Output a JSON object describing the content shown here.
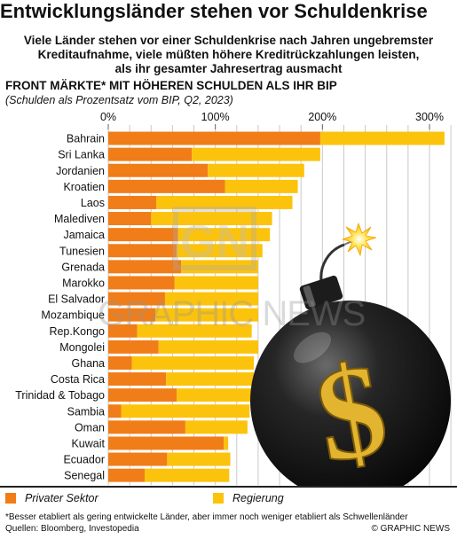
{
  "header": {
    "title": "Entwicklungsländer stehen vor Schuldenkrise",
    "subtitle_lines": [
      "Viele Länder stehen vor einer Schuldenkrise nach Jahren ungebremster",
      "Kreditaufnahme, viele müßten höhere Kreditrückzahlungen leisten,",
      "als ihr gesamter Jahresertrag ausmacht"
    ],
    "heading": "FRONT MÄRKTE* MIT HÖHEREN SCHULDEN ALS IHR BIP",
    "subheading": "(Schulden als Prozentsatz vom BIP, Q2, 2023)"
  },
  "colors": {
    "private": "#f07d18",
    "government": "#fcc30d",
    "grid": "#c9c9c9"
  },
  "chart_data": {
    "type": "bar",
    "orientation": "horizontal",
    "stacked": true,
    "xlim": [
      0,
      320
    ],
    "x_ticks": [
      "0%",
      "100%",
      "200%",
      "300%"
    ],
    "x_tick_values": [
      0,
      100,
      200,
      300
    ],
    "categories": [
      "Bahrain",
      "Sri Lanka",
      "Jordanien",
      "Kroatien",
      "Laos",
      "Malediven",
      "Jamaica",
      "Tunesien",
      "Grenada",
      "Marokko",
      "El Salvador",
      "Mozambique",
      "Rep.Kongo",
      "Mongolei",
      "Ghana",
      "Costa Rica",
      "Trinidad & Tobago",
      "Sambia",
      "Oman",
      "Kuwait",
      "Ecuador",
      "Senegal"
    ],
    "series": [
      {
        "name": "Privater Sektor",
        "values": [
          198,
          78,
          93,
          109,
          45,
          40,
          65,
          64,
          68,
          62,
          53,
          44,
          27,
          47,
          22,
          54,
          64,
          12,
          72,
          108,
          55,
          34
        ]
      },
      {
        "name": "Regierung",
        "values": [
          116,
          120,
          90,
          68,
          127,
          113,
          86,
          80,
          72,
          78,
          87,
          96,
          107,
          93,
          114,
          82,
          72,
          120,
          58,
          4,
          59,
          79
        ]
      }
    ],
    "legend_position": "bottom",
    "grid": "vertical"
  },
  "legend": {
    "private_label": "Privater Sektor",
    "government_label": "Regierung"
  },
  "footer": {
    "footnote": "*Besser etabliert als gering entwickelte Länder, aber immer noch weniger etabliert als Schwellenländer",
    "sources": "Quellen: Bloomberg, Investopedia",
    "credit": "© GRAPHIC NEWS"
  },
  "watermark": {
    "logo_letters": "GN",
    "text": "GRAPHIC NEWS"
  },
  "illustration": {
    "bomb_icon": "bomb-with-dollar-sign-icon",
    "symbol": "$"
  }
}
